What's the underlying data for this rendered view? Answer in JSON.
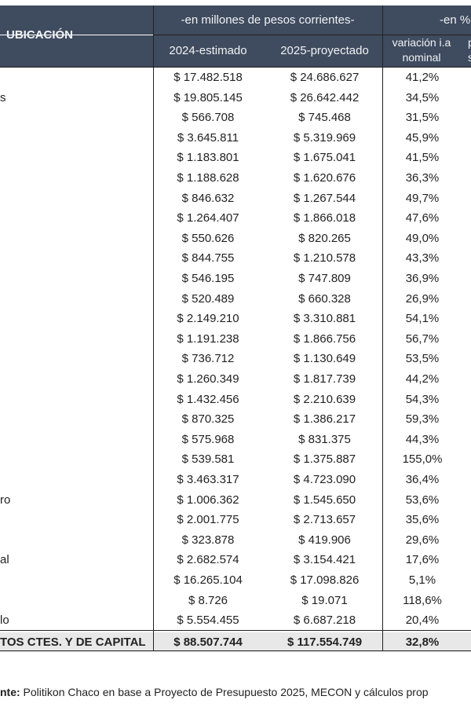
{
  "header": {
    "ubicacion": "UBICACIÓN",
    "group_pesos": "-en millones de pesos corrientes-",
    "group_pct": "-en %",
    "col_2024": "2024-estimado",
    "col_2025": "2025-proyectado",
    "col_var_1": "variación i.a",
    "col_var_2": "nominal",
    "col_partial_1": "p",
    "col_partial_2": "s"
  },
  "rows": [
    {
      "label": "",
      "v2024": "$ 17.482.518",
      "v2025": "$ 24.686.627",
      "var": "41,2%"
    },
    {
      "label": "s",
      "v2024": "$ 19.805.145",
      "v2025": "$ 26.642.442",
      "var": "34,5%"
    },
    {
      "label": "",
      "v2024": "$ 566.708",
      "v2025": "$ 745.468",
      "var": "31,5%"
    },
    {
      "label": "",
      "v2024": "$ 3.645.811",
      "v2025": "$ 5.319.969",
      "var": "45,9%"
    },
    {
      "label": "",
      "v2024": "$ 1.183.801",
      "v2025": "$ 1.675.041",
      "var": "41,5%"
    },
    {
      "label": "",
      "v2024": "$ 1.188.628",
      "v2025": "$ 1.620.676",
      "var": "36,3%"
    },
    {
      "label": "",
      "v2024": "$ 846.632",
      "v2025": "$ 1.267.544",
      "var": "49,7%"
    },
    {
      "label": "",
      "v2024": "$ 1.264.407",
      "v2025": "$ 1.866.018",
      "var": "47,6%"
    },
    {
      "label": "",
      "v2024": "$ 550.626",
      "v2025": "$ 820.265",
      "var": "49,0%"
    },
    {
      "label": "",
      "v2024": "$ 844.755",
      "v2025": "$ 1.210.578",
      "var": "43,3%"
    },
    {
      "label": "",
      "v2024": "$ 546.195",
      "v2025": "$ 747.809",
      "var": "36,9%"
    },
    {
      "label": "",
      "v2024": "$ 520.489",
      "v2025": "$ 660.328",
      "var": "26,9%"
    },
    {
      "label": "",
      "v2024": "$ 2.149.210",
      "v2025": "$ 3.310.881",
      "var": "54,1%"
    },
    {
      "label": "",
      "v2024": "$ 1.191.238",
      "v2025": "$ 1.866.756",
      "var": "56,7%"
    },
    {
      "label": "",
      "v2024": "$ 736.712",
      "v2025": "$ 1.130.649",
      "var": "53,5%"
    },
    {
      "label": "",
      "v2024": "$ 1.260.349",
      "v2025": "$ 1.817.739",
      "var": "44,2%"
    },
    {
      "label": "",
      "v2024": "$ 1.432.456",
      "v2025": "$ 2.210.639",
      "var": "54,3%"
    },
    {
      "label": "",
      "v2024": "$ 870.325",
      "v2025": "$ 1.386.217",
      "var": "59,3%"
    },
    {
      "label": "",
      "v2024": "$ 575.968",
      "v2025": "$ 831.375",
      "var": "44,3%"
    },
    {
      "label": "",
      "v2024": "$ 539.581",
      "v2025": "$ 1.375.887",
      "var": "155,0%"
    },
    {
      "label": "",
      "v2024": "$ 3.463.317",
      "v2025": "$ 4.723.090",
      "var": "36,4%"
    },
    {
      "label": "ro",
      "v2024": "$ 1.006.362",
      "v2025": "$ 1.545.650",
      "var": "53,6%"
    },
    {
      "label": "",
      "v2024": "$ 2.001.775",
      "v2025": "$ 2.713.657",
      "var": "35,6%"
    },
    {
      "label": "",
      "v2024": "$ 323.878",
      "v2025": "$ 419.906",
      "var": "29,6%"
    },
    {
      "label": "al",
      "v2024": "$ 2.682.574",
      "v2025": "$ 3.154.421",
      "var": "17,6%"
    },
    {
      "label": "",
      "v2024": "$ 16.265.104",
      "v2025": "$ 17.098.826",
      "var": "5,1%"
    },
    {
      "label": "",
      "v2024": "$ 8.726",
      "v2025": "$ 19.071",
      "var": "118,6%"
    },
    {
      "label": "lo",
      "v2024": "$ 5.554.455",
      "v2025": "$ 6.687.218",
      "var": "20,4%"
    }
  ],
  "total": {
    "label": "TOS CTES. Y DE CAPITAL",
    "v2024": "$ 88.507.744",
    "v2025": "$ 117.554.749",
    "var": "32,8%"
  },
  "footnote": {
    "bold": "nte:",
    "text": " Politikon Chaco en base a Proyecto de Presupuesto 2025, MECON y cálculos prop"
  },
  "colors": {
    "header_bg": "#3f4b5e",
    "total_bg": "#e8e8e8"
  }
}
